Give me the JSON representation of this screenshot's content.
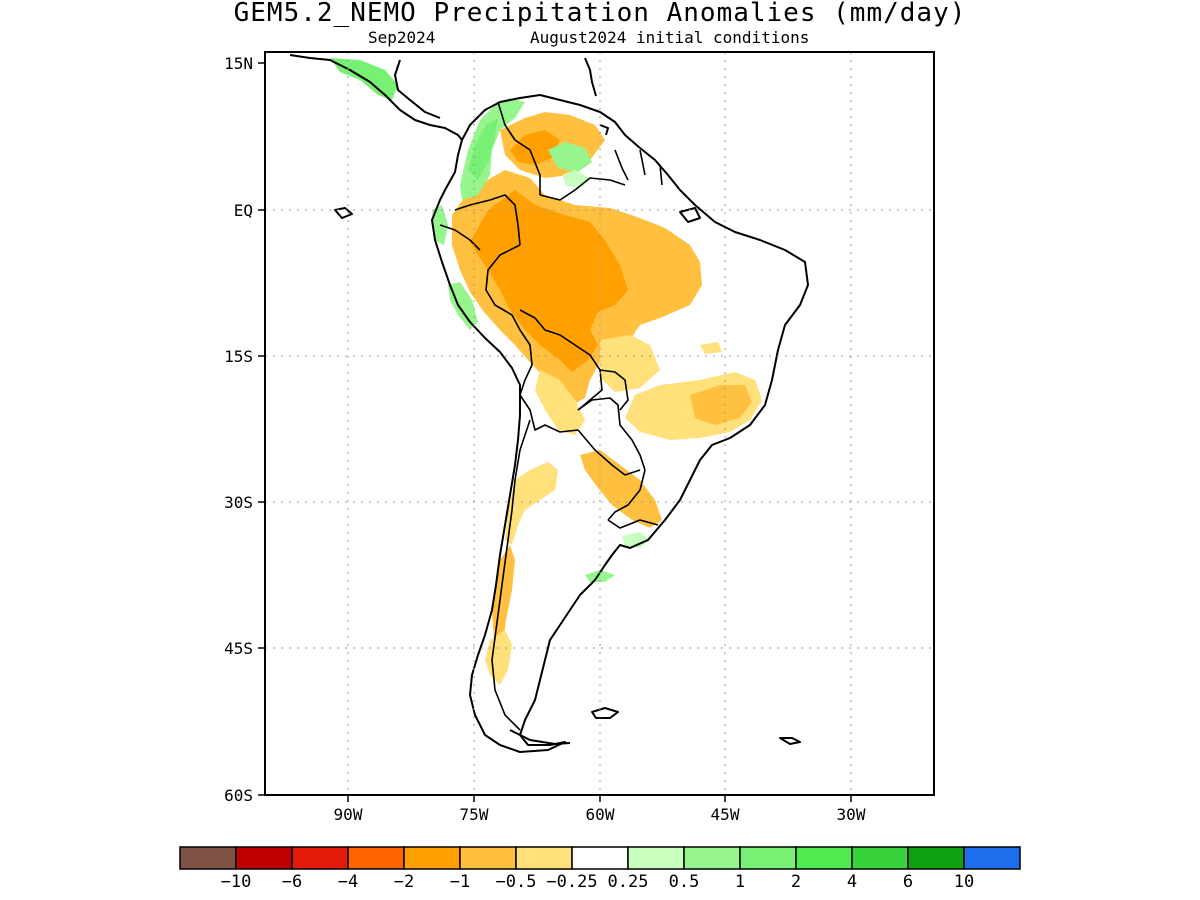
{
  "title": "GEM5.2_NEMO Precipitation Anomalies (mm/day)",
  "subtitle_left": "Sep2024",
  "subtitle_right": "August2024 initial conditions",
  "map": {
    "lon_range": [
      -100,
      -20
    ],
    "lat_range": [
      -60,
      15
    ],
    "lat_ticks": [
      {
        "value": 15,
        "label": "15N"
      },
      {
        "value": 0,
        "label": "EQ"
      },
      {
        "value": -15,
        "label": "15S"
      },
      {
        "value": -30,
        "label": "30S"
      },
      {
        "value": -45,
        "label": "45S"
      },
      {
        "value": -60,
        "label": "60S"
      }
    ],
    "lon_ticks": [
      {
        "value": -90,
        "label": "90W"
      },
      {
        "value": -75,
        "label": "75W"
      },
      {
        "value": -60,
        "label": "60W"
      },
      {
        "value": -45,
        "label": "45W"
      },
      {
        "value": -30,
        "label": "30W"
      }
    ],
    "gridlines": "dotted"
  },
  "colorbar": {
    "colors": [
      "#7f5244",
      "#c00000",
      "#e41a0a",
      "#ff6400",
      "#ffa000",
      "#ffc040",
      "#ffe07a",
      "#ffffff",
      "#c8ffbe",
      "#96f58c",
      "#78f073",
      "#50eb50",
      "#37d23c",
      "#0fa00f",
      "#1e6eeb"
    ],
    "labels": [
      "−10",
      "−6",
      "−4",
      "−2",
      "−1",
      "−0.5",
      "−0.25",
      "0.25",
      "0.5",
      "1",
      "2",
      "4",
      "6",
      "10"
    ]
  },
  "colors": {
    "dry_mid": "#ffc040",
    "dry_strong": "#ffa000",
    "dry_light": "#ffe07a",
    "wet_light": "#c8ffbe",
    "wet_mid": "#96f58c",
    "wet_strong": "#78f073"
  }
}
